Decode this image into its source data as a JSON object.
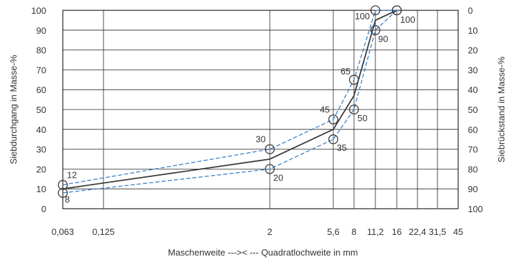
{
  "chart_data": {
    "type": "line",
    "title": "",
    "xlabel": "Maschenweite --->< --- Quadratlochweite in mm",
    "ylabel_left": "Siebdurchgang in Masse-%",
    "ylabel_right": "Siebrückstand in Masse-%",
    "x_ticks": [
      "0,063",
      "0,125",
      "2",
      "5,6",
      "8",
      "11,2",
      "16",
      "22,4",
      "31,5",
      "45"
    ],
    "y_left_ticks": [
      "0",
      "10",
      "20",
      "30",
      "40",
      "50",
      "60",
      "70",
      "80",
      "90",
      "100"
    ],
    "y_right_ticks": [
      "100",
      "90",
      "80",
      "70",
      "60",
      "50",
      "40",
      "30",
      "20",
      "10",
      "0"
    ],
    "ylim": [
      0,
      100
    ],
    "grid": true,
    "colors": {
      "mean": "#3a3a3a",
      "limits": "#3a7fc8",
      "grid": "#222222"
    },
    "series": [
      {
        "role": "upper-limit",
        "x": [
          "0,063",
          "2",
          "5,6",
          "8",
          "11,2",
          "16"
        ],
        "y": [
          12,
          30,
          45,
          65,
          100,
          100
        ]
      },
      {
        "role": "mean",
        "x": [
          "0,063",
          "2",
          "5,6",
          "8",
          "11,2",
          "16"
        ],
        "y": [
          10,
          25,
          40,
          57,
          95,
          100
        ]
      },
      {
        "role": "lower-limit",
        "x": [
          "0,063",
          "2",
          "5,6",
          "8",
          "11,2",
          "16"
        ],
        "y": [
          8,
          20,
          35,
          50,
          90,
          100
        ]
      }
    ],
    "point_labels": [
      {
        "x": "0,063",
        "y": 12,
        "text": "12"
      },
      {
        "x": "0,063",
        "y": 8,
        "text": "8"
      },
      {
        "x": "2",
        "y": 30,
        "text": "30"
      },
      {
        "x": "2",
        "y": 20,
        "text": "20"
      },
      {
        "x": "5,6",
        "y": 45,
        "text": "45"
      },
      {
        "x": "5,6",
        "y": 35,
        "text": "35"
      },
      {
        "x": "8",
        "y": 65,
        "text": "65"
      },
      {
        "x": "8",
        "y": 50,
        "text": "50"
      },
      {
        "x": "11,2",
        "y": 100,
        "text": "100"
      },
      {
        "x": "11,2",
        "y": 90,
        "text": "90"
      },
      {
        "x": "16",
        "y": 100,
        "text": "100"
      }
    ]
  }
}
